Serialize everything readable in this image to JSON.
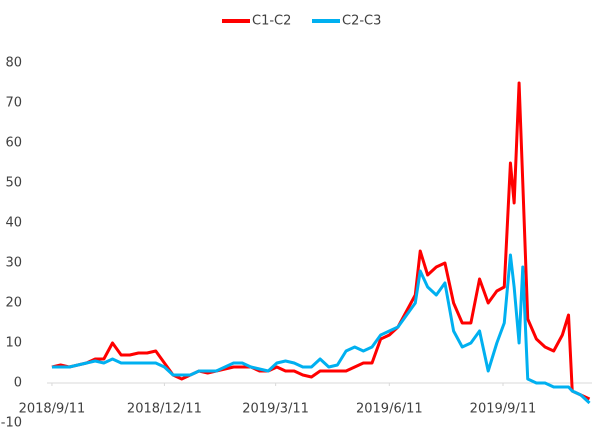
{
  "chart_data": {
    "type": "line",
    "x": [
      "2018-09-11",
      "2018-09-18",
      "2018-09-25",
      "2018-10-02",
      "2018-10-09",
      "2018-10-16",
      "2018-10-23",
      "2018-10-30",
      "2018-11-06",
      "2018-11-13",
      "2018-11-20",
      "2018-11-27",
      "2018-12-04",
      "2018-12-11",
      "2018-12-18",
      "2018-12-25",
      "2019-01-01",
      "2019-01-08",
      "2019-01-15",
      "2019-01-22",
      "2019-01-29",
      "2019-02-05",
      "2019-02-12",
      "2019-02-19",
      "2019-02-26",
      "2019-03-05",
      "2019-03-12",
      "2019-03-19",
      "2019-03-26",
      "2019-04-02",
      "2019-04-09",
      "2019-04-16",
      "2019-04-23",
      "2019-04-30",
      "2019-05-07",
      "2019-05-14",
      "2019-05-21",
      "2019-05-28",
      "2019-06-04",
      "2019-06-11",
      "2019-06-18",
      "2019-06-25",
      "2019-07-02",
      "2019-07-06",
      "2019-07-12",
      "2019-07-19",
      "2019-07-26",
      "2019-08-02",
      "2019-08-09",
      "2019-08-16",
      "2019-08-23",
      "2019-08-30",
      "2019-09-06",
      "2019-09-12",
      "2019-09-17",
      "2019-09-20",
      "2019-09-24",
      "2019-09-27",
      "2019-10-01",
      "2019-10-08",
      "2019-10-15",
      "2019-10-22",
      "2019-10-29",
      "2019-11-03",
      "2019-11-06",
      "2019-11-13",
      "2019-11-20"
    ],
    "series": [
      {
        "name": "C1-C2",
        "color": "#ff0000",
        "values": [
          4,
          4.5,
          4,
          4.5,
          5,
          6,
          6,
          10,
          7,
          7,
          7.5,
          7.5,
          8,
          5,
          2,
          1,
          2,
          3,
          2.5,
          3,
          3.5,
          4,
          4,
          4,
          3,
          3,
          4,
          3,
          3,
          2,
          1.5,
          3,
          3,
          3,
          3,
          4,
          5,
          5,
          11,
          12,
          14,
          18,
          22,
          33,
          27,
          29,
          30,
          20,
          15,
          15,
          26,
          20,
          23,
          24,
          55,
          45,
          75,
          50,
          16,
          11,
          9,
          8,
          12,
          17,
          -2,
          -3,
          -4
        ]
      },
      {
        "name": "C2-C3",
        "color": "#00b0f0",
        "values": [
          4,
          4,
          4,
          4.5,
          5,
          5.5,
          5,
          6,
          5,
          5,
          5,
          5,
          5,
          4,
          2,
          2,
          2,
          3,
          3,
          3,
          4,
          5,
          5,
          4,
          3.5,
          3,
          5,
          5.5,
          5,
          4,
          4,
          6,
          4,
          4.5,
          8,
          9,
          8,
          9,
          12,
          13,
          14,
          17,
          20,
          28,
          24,
          22,
          25,
          13,
          9,
          10,
          13,
          3,
          10,
          15,
          32,
          24,
          10,
          29,
          1,
          0,
          0,
          -1,
          -1,
          -1,
          -2,
          -3,
          -5
        ]
      }
    ],
    "xlim": [
      "2018-09-07",
      "2019-11-22"
    ],
    "xticks": [
      {
        "value": "2018-09-11",
        "label": "2018/9/11"
      },
      {
        "value": "2018-12-11",
        "label": "2018/12/11"
      },
      {
        "value": "2019-03-11",
        "label": "2019/3/11"
      },
      {
        "value": "2019-06-11",
        "label": "2019/6/11"
      },
      {
        "value": "2019-09-11",
        "label": "2019/9/11"
      }
    ],
    "ylim": [
      -10,
      80
    ],
    "yticks": [
      -10,
      0,
      10,
      20,
      30,
      40,
      50,
      60,
      70,
      80
    ],
    "legend": "top"
  }
}
